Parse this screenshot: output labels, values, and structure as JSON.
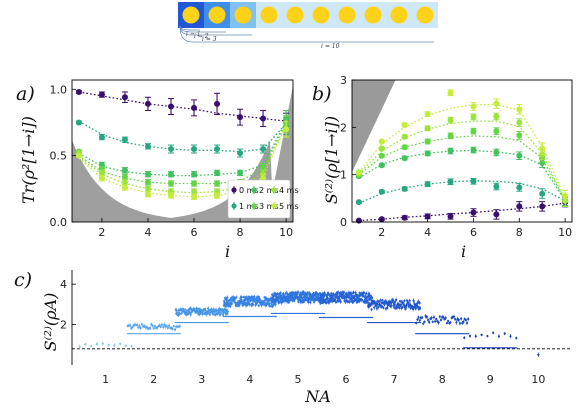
{
  "schematic": {
    "site_count": 10,
    "labels": [
      "i = 1",
      "i = 2",
      "i = 3",
      "i = 10"
    ],
    "colors": {
      "site_fill": "#ffd21a",
      "block_a": "#1f57d4",
      "block_b": "#3f8ee8",
      "block_c": "#7fc1ef",
      "block_rest": "#cfe8f7"
    }
  },
  "panel_labels": [
    "a)",
    "b)",
    "c)"
  ],
  "legend": {
    "labels": [
      "0 ms",
      "1 ms",
      "2 ms",
      "3 ms",
      "4 ms",
      "5 ms"
    ]
  },
  "axes": {
    "a": {
      "xlabel": "i",
      "ylabel": "Tr(ρ²[1→i])",
      "xticks": [
        "2",
        "4",
        "6",
        "8",
        "10"
      ],
      "yticks": [
        "0.0",
        "0.5",
        "1.0"
      ]
    },
    "b": {
      "xlabel": "i",
      "ylabel": "S(2)(ρ[1→i])",
      "xticks": [
        "2",
        "4",
        "6",
        "8",
        "10"
      ],
      "yticks": [
        "0",
        "1",
        "2",
        "3"
      ]
    },
    "c": {
      "xlabel": "N_A",
      "ylabel": "S(2)(ρ_A)",
      "xticks": [
        "1",
        "2",
        "3",
        "4",
        "5",
        "6",
        "7",
        "8",
        "9",
        "10"
      ],
      "yticks": [
        "2",
        "4"
      ]
    }
  },
  "chart_data": [
    {
      "panel": "a",
      "type": "line",
      "xlabel": "i",
      "ylabel": "Tr(ρ²[1→i])",
      "xlim": [
        0.7,
        10.3
      ],
      "ylim": [
        0,
        1.07
      ],
      "grid": false,
      "legend_position": "lower-right",
      "shaded_region": "gray area below bound",
      "x": [
        1,
        2,
        3,
        4,
        5,
        6,
        7,
        8,
        9,
        10
      ],
      "series": [
        {
          "name": "0 ms",
          "color": "#3a0f6e",
          "values": [
            0.98,
            0.96,
            0.94,
            0.89,
            0.87,
            0.86,
            0.89,
            0.79,
            0.78,
            0.76
          ],
          "errors": [
            0.01,
            0.02,
            0.04,
            0.05,
            0.06,
            0.06,
            0.08,
            0.06,
            0.06,
            0.06
          ],
          "fit": [
            0.98,
            0.95,
            0.92,
            0.89,
            0.87,
            0.85,
            0.82,
            0.8,
            0.78,
            0.76
          ]
        },
        {
          "name": "1 ms",
          "color": "#27a684",
          "values": [
            0.75,
            0.64,
            0.62,
            0.57,
            0.55,
            0.55,
            0.55,
            0.52,
            0.55,
            0.72
          ],
          "errors": [
            0.01,
            0.02,
            0.02,
            0.02,
            0.03,
            0.03,
            0.03,
            0.03,
            0.03,
            0.06
          ],
          "fit": [
            0.76,
            0.66,
            0.6,
            0.57,
            0.55,
            0.54,
            0.54,
            0.53,
            0.55,
            0.74
          ]
        },
        {
          "name": "2 ms",
          "color": "#3ec25e",
          "values": [
            0.51,
            0.43,
            0.39,
            0.36,
            0.36,
            0.36,
            0.37,
            0.37,
            0.41,
            0.78
          ],
          "errors": [
            0.01,
            0.02,
            0.02,
            0.02,
            0.02,
            0.02,
            0.02,
            0.02,
            0.03,
            0.06
          ],
          "fit": [
            0.52,
            0.42,
            0.38,
            0.36,
            0.35,
            0.35,
            0.36,
            0.37,
            0.43,
            0.76
          ]
        },
        {
          "name": "3 ms",
          "color": "#62d544",
          "values": [
            0.53,
            0.4,
            0.34,
            0.3,
            0.29,
            0.29,
            0.29,
            0.3,
            0.41,
            0.74
          ],
          "errors": [
            0.01,
            0.02,
            0.02,
            0.02,
            0.02,
            0.02,
            0.02,
            0.02,
            0.03,
            0.06
          ],
          "fit": [
            0.5,
            0.38,
            0.33,
            0.3,
            0.29,
            0.29,
            0.29,
            0.31,
            0.4,
            0.75
          ]
        },
        {
          "name": "4 ms",
          "color": "#9ae33d",
          "values": [
            0.52,
            0.37,
            0.3,
            0.25,
            0.23,
            0.23,
            0.23,
            0.25,
            0.36,
            0.7
          ],
          "errors": [
            0.01,
            0.02,
            0.02,
            0.02,
            0.02,
            0.02,
            0.02,
            0.02,
            0.03,
            0.06
          ],
          "fit": [
            0.49,
            0.36,
            0.29,
            0.25,
            0.23,
            0.22,
            0.23,
            0.26,
            0.37,
            0.74
          ]
        },
        {
          "name": "5 ms",
          "color": "#c4ec3a",
          "values": [
            0.5,
            0.33,
            0.26,
            0.21,
            0.2,
            0.19,
            0.2,
            0.22,
            0.33,
            0.7
          ],
          "errors": [
            0.01,
            0.02,
            0.02,
            0.02,
            0.02,
            0.02,
            0.02,
            0.02,
            0.03,
            0.06
          ],
          "fit": [
            0.48,
            0.33,
            0.26,
            0.22,
            0.2,
            0.19,
            0.2,
            0.23,
            0.34,
            0.73
          ]
        }
      ]
    },
    {
      "panel": "b",
      "type": "line",
      "xlabel": "i",
      "ylabel": "S(2)(ρ[1→i])",
      "xlim": [
        0.7,
        10.3
      ],
      "ylim": [
        0,
        3
      ],
      "grid": false,
      "shaded_region": "gray area above bound",
      "x": [
        1,
        2,
        3,
        4,
        5,
        6,
        7,
        8,
        9,
        10
      ],
      "series": [
        {
          "name": "0 ms",
          "color": "#3a0f6e",
          "values": [
            0.03,
            0.06,
            0.09,
            0.12,
            0.12,
            0.2,
            0.16,
            0.33,
            0.33,
            0.42
          ],
          "errors": [
            0.01,
            0.02,
            0.04,
            0.05,
            0.06,
            0.08,
            0.1,
            0.1,
            0.1,
            0.1
          ],
          "fit": [
            0.03,
            0.06,
            0.1,
            0.13,
            0.17,
            0.2,
            0.24,
            0.28,
            0.33,
            0.4
          ]
        },
        {
          "name": "1 ms",
          "color": "#27a684",
          "values": [
            0.42,
            0.64,
            0.7,
            0.8,
            0.85,
            0.86,
            0.75,
            0.73,
            0.6,
            0.45
          ],
          "errors": [
            0.02,
            0.03,
            0.04,
            0.05,
            0.06,
            0.06,
            0.07,
            0.08,
            0.1,
            0.1
          ],
          "fit": [
            0.4,
            0.6,
            0.72,
            0.8,
            0.85,
            0.87,
            0.86,
            0.82,
            0.7,
            0.45
          ]
        },
        {
          "name": "2 ms",
          "color": "#3ec25e",
          "values": [
            0.97,
            1.2,
            1.35,
            1.45,
            1.5,
            1.52,
            1.47,
            1.4,
            1.25,
            0.45
          ],
          "errors": [
            0.02,
            0.03,
            0.04,
            0.05,
            0.06,
            0.06,
            0.07,
            0.08,
            0.1,
            0.12
          ],
          "fit": [
            0.93,
            1.22,
            1.37,
            1.45,
            1.5,
            1.51,
            1.48,
            1.42,
            1.2,
            0.45
          ]
        },
        {
          "name": "3 ms",
          "color": "#62d544",
          "values": [
            1.0,
            1.4,
            1.58,
            1.7,
            1.82,
            1.92,
            1.92,
            1.83,
            1.35,
            0.45
          ],
          "errors": [
            0.02,
            0.03,
            0.04,
            0.05,
            0.06,
            0.06,
            0.07,
            0.08,
            0.1,
            0.12
          ],
          "fit": [
            1.0,
            1.38,
            1.58,
            1.7,
            1.78,
            1.82,
            1.8,
            1.72,
            1.35,
            0.45
          ]
        },
        {
          "name": "4 ms",
          "color": "#9ae33d",
          "values": [
            1.02,
            1.55,
            1.8,
            1.98,
            2.15,
            2.22,
            2.23,
            2.1,
            1.42,
            0.45
          ],
          "errors": [
            0.02,
            0.03,
            0.04,
            0.05,
            0.06,
            0.06,
            0.07,
            0.08,
            0.1,
            0.12
          ],
          "fit": [
            1.02,
            1.5,
            1.78,
            1.96,
            2.08,
            2.13,
            2.13,
            2.02,
            1.45,
            0.45
          ]
        },
        {
          "name": "5 ms",
          "color": "#c4ec3a",
          "values": [
            1.05,
            1.7,
            2.05,
            2.28,
            2.73,
            2.44,
            2.5,
            2.38,
            1.55,
            0.55
          ],
          "errors": [
            0.02,
            0.03,
            0.04,
            0.05,
            0.06,
            0.08,
            0.1,
            0.1,
            0.12,
            0.12
          ],
          "fit": [
            1.05,
            1.65,
            2.0,
            2.25,
            2.4,
            2.48,
            2.48,
            2.36,
            1.6,
            0.5
          ]
        }
      ]
    },
    {
      "panel": "c",
      "type": "scatter",
      "xlabel": "N_A",
      "ylabel": "S(2)(ρ_A)",
      "categories": [
        "1",
        "2",
        "3",
        "4",
        "5",
        "6",
        "7",
        "8",
        "9",
        "10"
      ],
      "ylim": [
        0,
        4.7
      ],
      "reference_line": 0.8,
      "groups": [
        {
          "N_A": 1,
          "count": 10,
          "center": 0.95,
          "spread": 0.06,
          "lower_bound": null,
          "color": "#7fc8f0"
        },
        {
          "N_A": 2,
          "count": 45,
          "center": 1.85,
          "spread": 0.12,
          "lower_bound": 1.55,
          "color": "#5aa8ea"
        },
        {
          "N_A": 3,
          "count": 120,
          "center": 2.6,
          "spread": 0.16,
          "lower_bound": 2.1,
          "color": "#4796e6"
        },
        {
          "N_A": 4,
          "count": 210,
          "center": 3.1,
          "spread": 0.22,
          "lower_bound": 2.4,
          "color": "#3a85e2"
        },
        {
          "N_A": 5,
          "count": 252,
          "center": 3.3,
          "spread": 0.25,
          "lower_bound": 2.55,
          "color": "#2e74dc"
        },
        {
          "N_A": 6,
          "count": 210,
          "center": 3.3,
          "spread": 0.25,
          "lower_bound": 2.35,
          "color": "#2864d4"
        },
        {
          "N_A": 7,
          "count": 120,
          "center": 2.95,
          "spread": 0.22,
          "lower_bound": 2.1,
          "color": "#2257c8"
        },
        {
          "N_A": 8,
          "count": 45,
          "center": 2.2,
          "spread": 0.2,
          "lower_bound": 1.55,
          "color": "#1c4cbc"
        },
        {
          "N_A": 9,
          "count": 10,
          "center": 1.45,
          "spread": 0.12,
          "lower_bound": 0.85,
          "color": "#1842ae"
        },
        {
          "N_A": 10,
          "count": 1,
          "center": 0.45,
          "spread": 0.0,
          "lower_bound": null,
          "color": "#143aa0"
        }
      ]
    }
  ]
}
